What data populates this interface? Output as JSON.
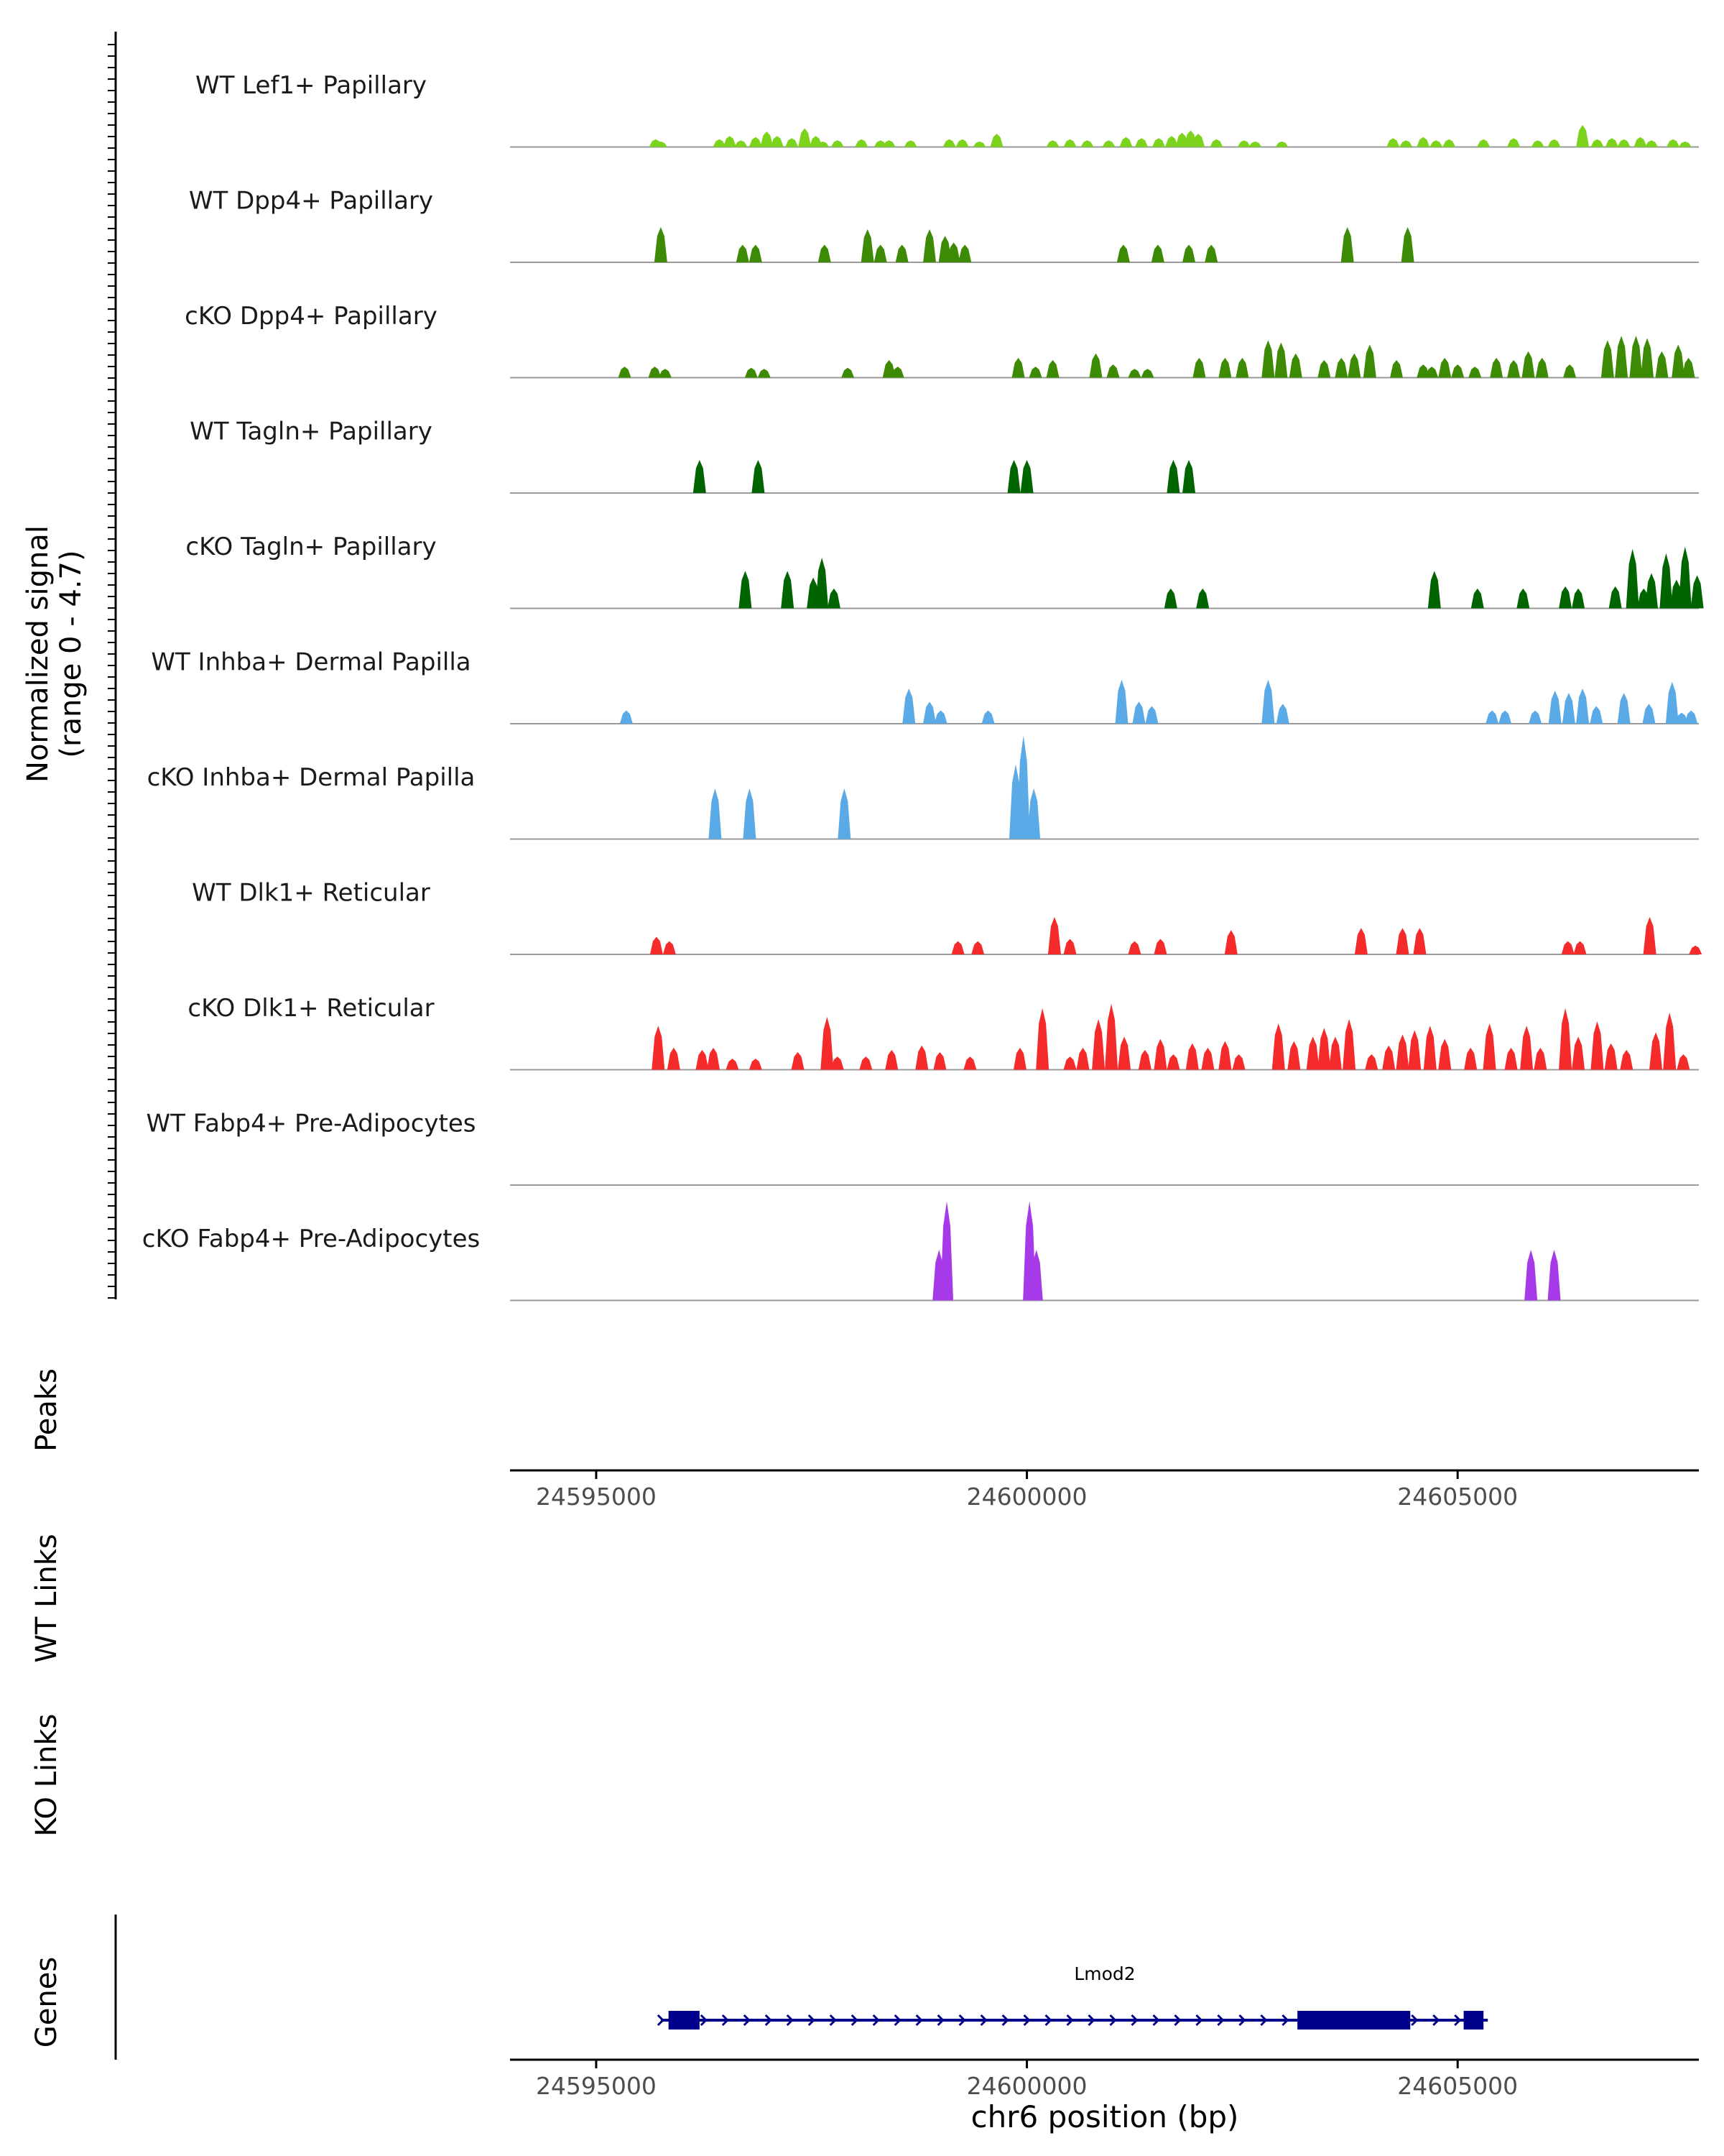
{
  "chart_data": {
    "type": "coverage",
    "signal_axis_label_line1": "Normalized signal",
    "signal_axis_label_line2": "(range 0 - 4.7)",
    "signal_range": [
      0,
      4.7
    ],
    "x_range": [
      24594000,
      24607800
    ],
    "x_ticks": [
      24595000,
      24600000,
      24605000
    ],
    "x_tick_labels": [
      "24595000",
      "24600000",
      "24605000"
    ],
    "xlabel": "chr6 position (bp)",
    "tracks": [
      {
        "name": "WT Lef1+ Papillary",
        "color": "#7bd31b",
        "peaks": [
          [
            24595690,
            0.35
          ],
          [
            24595750,
            0.25
          ],
          [
            24596430,
            0.35
          ],
          [
            24596550,
            0.5
          ],
          [
            24596680,
            0.3
          ],
          [
            24596850,
            0.45
          ],
          [
            24596980,
            0.7
          ],
          [
            24597100,
            0.5
          ],
          [
            24597270,
            0.4
          ],
          [
            24597420,
            0.85
          ],
          [
            24597550,
            0.5
          ],
          [
            24597630,
            0.25
          ],
          [
            24597800,
            0.3
          ],
          [
            24598080,
            0.35
          ],
          [
            24598300,
            0.3
          ],
          [
            24598400,
            0.3
          ],
          [
            24598650,
            0.3
          ],
          [
            24599100,
            0.35
          ],
          [
            24599250,
            0.35
          ],
          [
            24599450,
            0.25
          ],
          [
            24599650,
            0.6
          ],
          [
            24600300,
            0.3
          ],
          [
            24600500,
            0.35
          ],
          [
            24600700,
            0.3
          ],
          [
            24600950,
            0.3
          ],
          [
            24601150,
            0.45
          ],
          [
            24601330,
            0.4
          ],
          [
            24601530,
            0.4
          ],
          [
            24601680,
            0.5
          ],
          [
            24601800,
            0.65
          ],
          [
            24601900,
            0.75
          ],
          [
            24601990,
            0.6
          ],
          [
            24602200,
            0.35
          ],
          [
            24602520,
            0.3
          ],
          [
            24602650,
            0.25
          ],
          [
            24602960,
            0.25
          ],
          [
            24604250,
            0.4
          ],
          [
            24604400,
            0.3
          ],
          [
            24604600,
            0.45
          ],
          [
            24604750,
            0.3
          ],
          [
            24604900,
            0.35
          ],
          [
            24605300,
            0.35
          ],
          [
            24605650,
            0.4
          ],
          [
            24605930,
            0.3
          ],
          [
            24606120,
            0.35
          ],
          [
            24606450,
            1.0
          ],
          [
            24606620,
            0.35
          ],
          [
            24606790,
            0.4
          ],
          [
            24606930,
            0.35
          ],
          [
            24607120,
            0.45
          ],
          [
            24607250,
            0.3
          ],
          [
            24607500,
            0.35
          ],
          [
            24607640,
            0.25
          ]
        ]
      },
      {
        "name": "WT Dpp4+ Papillary",
        "color": "#3d8b04",
        "peaks": [
          [
            24595750,
            1.6
          ],
          [
            24596700,
            0.8
          ],
          [
            24596850,
            0.8
          ],
          [
            24597650,
            0.8
          ],
          [
            24598150,
            1.5
          ],
          [
            24598300,
            0.8
          ],
          [
            24598550,
            0.8
          ],
          [
            24598870,
            1.5
          ],
          [
            24599050,
            1.2
          ],
          [
            24599150,
            0.9
          ],
          [
            24599280,
            0.8
          ],
          [
            24601120,
            0.8
          ],
          [
            24601520,
            0.8
          ],
          [
            24601880,
            0.8
          ],
          [
            24602140,
            0.8
          ],
          [
            24603720,
            1.6
          ],
          [
            24604420,
            1.6
          ]
        ]
      },
      {
        "name": "cKO Dpp4+ Papillary",
        "color": "#3d8b04",
        "peaks": [
          [
            24595330,
            0.5
          ],
          [
            24595680,
            0.5
          ],
          [
            24595800,
            0.4
          ],
          [
            24596800,
            0.45
          ],
          [
            24596950,
            0.4
          ],
          [
            24597920,
            0.45
          ],
          [
            24598400,
            0.8
          ],
          [
            24598500,
            0.5
          ],
          [
            24599900,
            0.9
          ],
          [
            24600100,
            0.5
          ],
          [
            24600300,
            0.8
          ],
          [
            24600800,
            1.1
          ],
          [
            24601000,
            0.6
          ],
          [
            24601250,
            0.4
          ],
          [
            24601400,
            0.4
          ],
          [
            24602000,
            0.9
          ],
          [
            24602300,
            0.9
          ],
          [
            24602500,
            0.9
          ],
          [
            24602800,
            1.7
          ],
          [
            24602950,
            1.6
          ],
          [
            24603120,
            1.1
          ],
          [
            24603450,
            0.8
          ],
          [
            24603650,
            0.9
          ],
          [
            24603800,
            1.1
          ],
          [
            24603980,
            1.5
          ],
          [
            24604290,
            0.8
          ],
          [
            24604600,
            0.6
          ],
          [
            24604700,
            0.5
          ],
          [
            24604850,
            0.9
          ],
          [
            24605000,
            0.6
          ],
          [
            24605200,
            0.5
          ],
          [
            24605450,
            0.9
          ],
          [
            24605650,
            0.8
          ],
          [
            24605820,
            1.2
          ],
          [
            24605980,
            0.9
          ],
          [
            24606300,
            0.6
          ],
          [
            24606740,
            1.7
          ],
          [
            24606900,
            1.9
          ],
          [
            24607070,
            1.9
          ],
          [
            24607200,
            1.8
          ],
          [
            24607370,
            1.2
          ],
          [
            24607560,
            1.5
          ],
          [
            24607680,
            0.9
          ]
        ]
      },
      {
        "name": "WT Tagln+ Papillary",
        "color": "#006400",
        "peaks": [
          [
            24596200,
            1.5
          ],
          [
            24596880,
            1.5
          ],
          [
            24599850,
            1.5
          ],
          [
            24600000,
            1.5
          ],
          [
            24601700,
            1.5
          ],
          [
            24601880,
            1.5
          ]
        ]
      },
      {
        "name": "cKO Tagln+ Papillary",
        "color": "#006400",
        "peaks": [
          [
            24596730,
            1.7
          ],
          [
            24597220,
            1.7
          ],
          [
            24597520,
            1.4
          ],
          [
            24597620,
            2.3
          ],
          [
            24597760,
            0.9
          ],
          [
            24601670,
            0.9
          ],
          [
            24602040,
            0.9
          ],
          [
            24604730,
            1.7
          ],
          [
            24605230,
            0.9
          ],
          [
            24605760,
            0.9
          ],
          [
            24606250,
            1.0
          ],
          [
            24606400,
            0.9
          ],
          [
            24606830,
            1.0
          ],
          [
            24607030,
            2.7
          ],
          [
            24607160,
            0.9
          ],
          [
            24607250,
            1.6
          ],
          [
            24607420,
            2.5
          ],
          [
            24607540,
            1.3
          ],
          [
            24607640,
            2.8
          ],
          [
            24607780,
            1.5
          ]
        ]
      },
      {
        "name": "WT Inhba+ Dermal Papilla",
        "color": "#5aaae8",
        "peaks": [
          [
            24595350,
            0.6
          ],
          [
            24598630,
            1.6
          ],
          [
            24598870,
            1.0
          ],
          [
            24599000,
            0.6
          ],
          [
            24599550,
            0.6
          ],
          [
            24601100,
            2.0
          ],
          [
            24601300,
            1.0
          ],
          [
            24601450,
            0.8
          ],
          [
            24602800,
            2.0
          ],
          [
            24602970,
            0.9
          ],
          [
            24605400,
            0.6
          ],
          [
            24605550,
            0.6
          ],
          [
            24605900,
            0.6
          ],
          [
            24606130,
            1.5
          ],
          [
            24606290,
            1.4
          ],
          [
            24606450,
            1.6
          ],
          [
            24606610,
            0.8
          ],
          [
            24606930,
            1.4
          ],
          [
            24607220,
            0.9
          ],
          [
            24607490,
            1.9
          ],
          [
            24607600,
            0.5
          ],
          [
            24607710,
            0.6
          ]
        ]
      },
      {
        "name": "cKO Inhba+ Dermal Papilla",
        "color": "#5aaae8",
        "peaks": [
          [
            24596380,
            2.3
          ],
          [
            24596780,
            2.3
          ],
          [
            24597880,
            2.3
          ],
          [
            24599870,
            3.4
          ],
          [
            24599960,
            4.7
          ],
          [
            24600080,
            2.3
          ]
        ]
      },
      {
        "name": "WT Dlk1+ Reticular",
        "color": "#f52a2a",
        "peaks": [
          [
            24595700,
            0.8
          ],
          [
            24595850,
            0.6
          ],
          [
            24599200,
            0.6
          ],
          [
            24599430,
            0.6
          ],
          [
            24600320,
            1.7
          ],
          [
            24600500,
            0.7
          ],
          [
            24601250,
            0.6
          ],
          [
            24601550,
            0.7
          ],
          [
            24602370,
            1.1
          ],
          [
            24603880,
            1.2
          ],
          [
            24604360,
            1.2
          ],
          [
            24604560,
            1.2
          ],
          [
            24606280,
            0.6
          ],
          [
            24606420,
            0.6
          ],
          [
            24607230,
            1.7
          ],
          [
            24607760,
            0.4
          ]
        ]
      },
      {
        "name": "cKO Dlk1+ Reticular",
        "color": "#f52a2a",
        "peaks": [
          [
            24595720,
            2.0
          ],
          [
            24595900,
            1.0
          ],
          [
            24596230,
            0.9
          ],
          [
            24596360,
            1.0
          ],
          [
            24596580,
            0.5
          ],
          [
            24596850,
            0.5
          ],
          [
            24597340,
            0.8
          ],
          [
            24597680,
            2.4
          ],
          [
            24597800,
            0.6
          ],
          [
            24598130,
            0.6
          ],
          [
            24598430,
            0.9
          ],
          [
            24598780,
            1.1
          ],
          [
            24598990,
            0.8
          ],
          [
            24599340,
            0.6
          ],
          [
            24599920,
            1.0
          ],
          [
            24600180,
            2.8
          ],
          [
            24600500,
            0.6
          ],
          [
            24600650,
            1.0
          ],
          [
            24600830,
            2.3
          ],
          [
            24600980,
            3.0
          ],
          [
            24601130,
            1.5
          ],
          [
            24601370,
            0.9
          ],
          [
            24601550,
            1.4
          ],
          [
            24601700,
            0.7
          ],
          [
            24601920,
            1.2
          ],
          [
            24602100,
            1.0
          ],
          [
            24602300,
            1.3
          ],
          [
            24602460,
            0.7
          ],
          [
            24602920,
            2.1
          ],
          [
            24603100,
            1.3
          ],
          [
            24603320,
            1.5
          ],
          [
            24603450,
            1.9
          ],
          [
            24603580,
            1.5
          ],
          [
            24603740,
            2.3
          ],
          [
            24604000,
            0.7
          ],
          [
            24604200,
            1.1
          ],
          [
            24604360,
            1.6
          ],
          [
            24604500,
            1.8
          ],
          [
            24604680,
            2.0
          ],
          [
            24604850,
            1.4
          ],
          [
            24605150,
            1.0
          ],
          [
            24605370,
            2.1
          ],
          [
            24605620,
            1.0
          ],
          [
            24605800,
            2.0
          ],
          [
            24605960,
            1.0
          ],
          [
            24606250,
            2.8
          ],
          [
            24606400,
            1.5
          ],
          [
            24606620,
            2.2
          ],
          [
            24606780,
            1.2
          ],
          [
            24606960,
            0.9
          ],
          [
            24607300,
            1.7
          ],
          [
            24607460,
            2.6
          ],
          [
            24607620,
            0.7
          ]
        ]
      },
      {
        "name": "WT Fabp4+ Pre-Adipocytes",
        "color": "#a63ae8",
        "peaks": []
      },
      {
        "name": "cKO Fabp4+ Pre-Adipocytes",
        "color": "#a63ae8",
        "peaks": [
          [
            24598980,
            2.3
          ],
          [
            24599070,
            4.5
          ],
          [
            24600030,
            4.5
          ],
          [
            24600110,
            2.3
          ],
          [
            24605850,
            2.3
          ],
          [
            24606120,
            2.3
          ]
        ]
      }
    ],
    "peaks_label": "Peaks",
    "wt_links_label": "WT Links",
    "ko_links_label": "KO Links",
    "genes_label": "Genes",
    "gene": {
      "name": "Lmod2",
      "color": "#00008b",
      "span": [
        24595750,
        24605350
      ],
      "strand": "+",
      "exons": [
        [
          24595840,
          24596200
        ],
        [
          24603140,
          24604450
        ],
        [
          24605070,
          24605300
        ]
      ]
    }
  }
}
